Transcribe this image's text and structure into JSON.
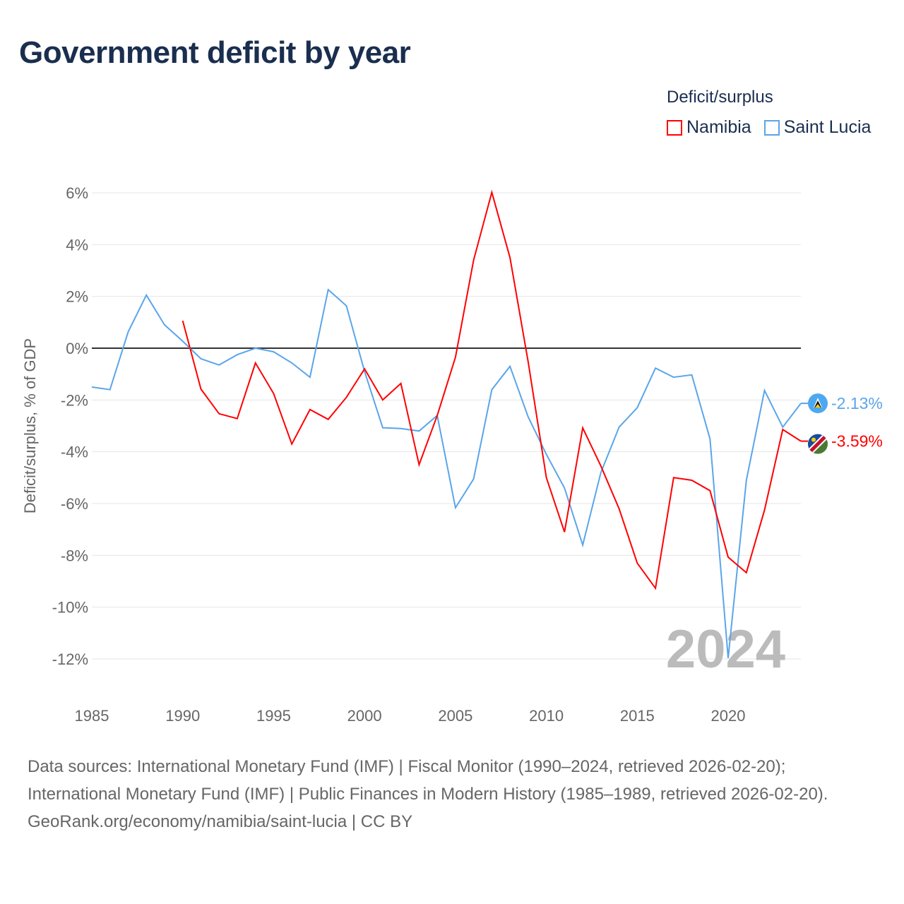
{
  "title": "Government deficit by year",
  "legend": {
    "title": "Deficit/surplus",
    "items": [
      {
        "label": "Namibia",
        "color": "#ff0000"
      },
      {
        "label": "Saint Lucia",
        "color": "#5aa5ea"
      }
    ]
  },
  "chart_data": {
    "type": "line",
    "title": "Government deficit by year",
    "xlabel": "",
    "ylabel": "Deficit/surplus, % of GDP",
    "xlim": [
      1985,
      2024
    ],
    "ylim": [
      -12,
      6
    ],
    "x_ticks": [
      1985,
      1990,
      1995,
      2000,
      2005,
      2010,
      2015,
      2020
    ],
    "x_tick_labels": [
      "1985",
      "1990",
      "1995",
      "2000",
      "2005",
      "2010",
      "2015",
      "2020"
    ],
    "y_ticks": [
      6,
      4,
      2,
      0,
      -2,
      -4,
      -6,
      -8,
      -10,
      -12
    ],
    "y_tick_labels": [
      "6%",
      "4%",
      "2%",
      "0%",
      "-2%",
      "-4%",
      "-6%",
      "-8%",
      "-10%",
      "-12%"
    ],
    "grid": true,
    "legend_position": "top-right",
    "year_watermark": "2024",
    "series": [
      {
        "name": "Namibia",
        "color": "#ff0000",
        "end_label": "-3.59%",
        "x": [
          1990,
          1991,
          1992,
          1993,
          1994,
          1995,
          1996,
          1997,
          1998,
          1999,
          2000,
          2001,
          2002,
          2003,
          2004,
          2005,
          2006,
          2007,
          2008,
          2009,
          2010,
          2011,
          2012,
          2013,
          2014,
          2015,
          2016,
          2017,
          2018,
          2019,
          2020,
          2021,
          2022,
          2023,
          2024
        ],
        "values": [
          1.06,
          -1.58,
          -2.53,
          -2.72,
          -0.57,
          -1.75,
          -3.7,
          -2.37,
          -2.75,
          -1.9,
          -0.8,
          -2.0,
          -1.36,
          -4.5,
          -2.6,
          -0.35,
          3.4,
          6.02,
          3.5,
          -0.52,
          -5.0,
          -7.1,
          -3.08,
          -4.55,
          -6.2,
          -8.3,
          -9.27,
          -5.0,
          -5.1,
          -5.5,
          -8.07,
          -8.67,
          -6.25,
          -3.14,
          -3.59
        ]
      },
      {
        "name": "Saint Lucia",
        "color": "#5aa5ea",
        "end_label": "-2.13%",
        "x": [
          1985,
          1986,
          1987,
          1988,
          1989,
          1990,
          1991,
          1992,
          1993,
          1994,
          1995,
          1996,
          1997,
          1998,
          1999,
          2000,
          2001,
          2002,
          2003,
          2004,
          2005,
          2006,
          2007,
          2008,
          2009,
          2010,
          2011,
          2012,
          2013,
          2014,
          2015,
          2016,
          2017,
          2018,
          2019,
          2020,
          2021,
          2022,
          2023,
          2024
        ],
        "values": [
          -1.5,
          -1.6,
          0.63,
          2.05,
          0.9,
          0.27,
          -0.41,
          -0.65,
          -0.25,
          0.0,
          -0.14,
          -0.57,
          -1.12,
          2.26,
          1.64,
          -0.9,
          -3.07,
          -3.1,
          -3.2,
          -2.6,
          -6.16,
          -5.05,
          -1.6,
          -0.7,
          -2.65,
          -4.1,
          -5.4,
          -7.6,
          -4.8,
          -3.05,
          -2.3,
          -0.77,
          -1.12,
          -1.03,
          -3.5,
          -11.97,
          -5.1,
          -1.63,
          -3.05,
          -2.13
        ]
      }
    ]
  },
  "footer": {
    "sources": "Data sources: International Monetary Fund (IMF) | Fiscal Monitor (1990–2024, retrieved 2026-02-20); International Monetary Fund (IMF) | Public Finances in Modern History (1985–1989, retrieved 2026-02-20).",
    "credit": "GeoRank.org/economy/namibia/saint-lucia | CC BY"
  }
}
